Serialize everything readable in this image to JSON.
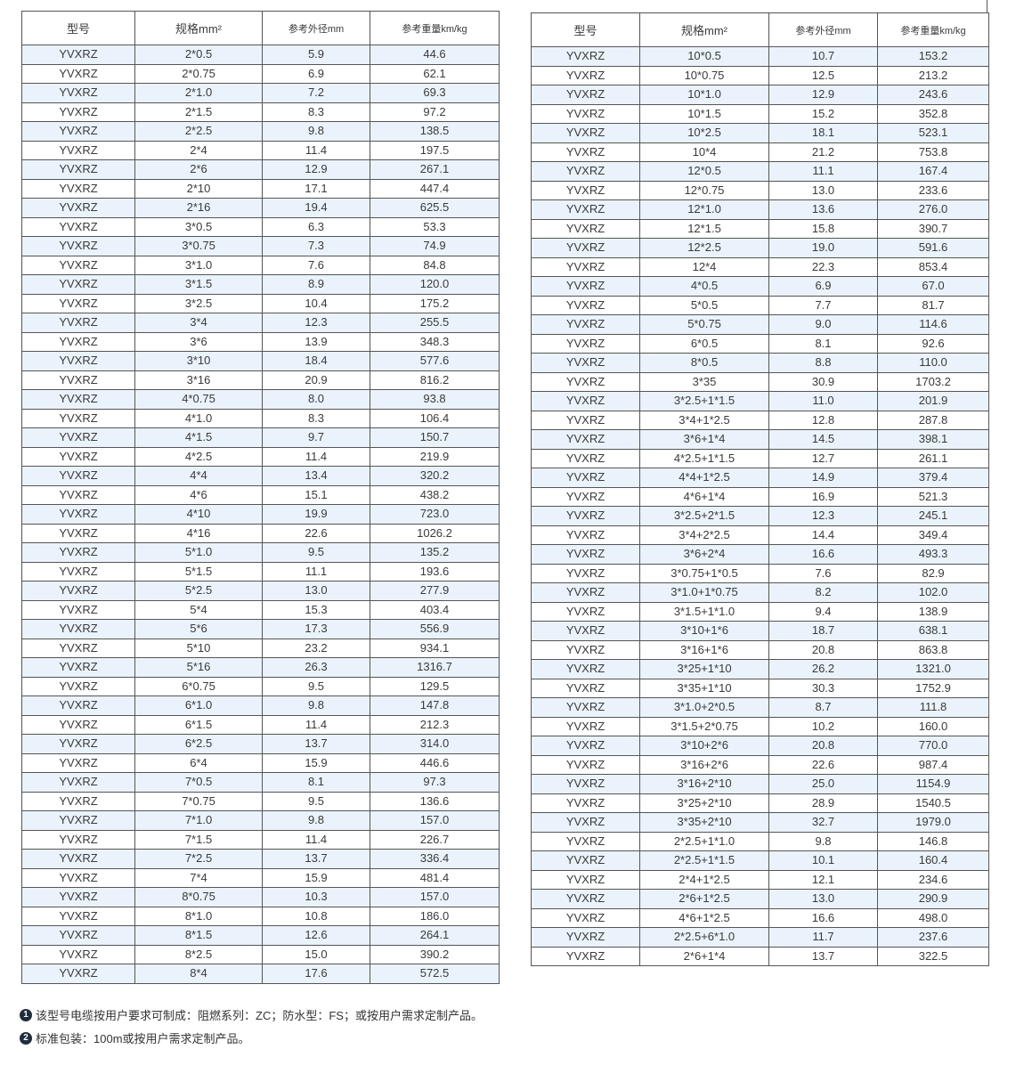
{
  "headers": [
    "型号",
    "规格mm²",
    "参考外径mm",
    "参考重量km/kg"
  ],
  "left_rows": [
    [
      "YVXRZ",
      "2*0.5",
      "5.9",
      "44.6"
    ],
    [
      "YVXRZ",
      "2*0.75",
      "6.9",
      "62.1"
    ],
    [
      "YVXRZ",
      "2*1.0",
      "7.2",
      "69.3"
    ],
    [
      "YVXRZ",
      "2*1.5",
      "8.3",
      "97.2"
    ],
    [
      "YVXRZ",
      "2*2.5",
      "9.8",
      "138.5"
    ],
    [
      "YVXRZ",
      "2*4",
      "11.4",
      "197.5"
    ],
    [
      "YVXRZ",
      "2*6",
      "12.9",
      "267.1"
    ],
    [
      "YVXRZ",
      "2*10",
      "17.1",
      "447.4"
    ],
    [
      "YVXRZ",
      "2*16",
      "19.4",
      "625.5"
    ],
    [
      "YVXRZ",
      "3*0.5",
      "6.3",
      "53.3"
    ],
    [
      "YVXRZ",
      "3*0.75",
      "7.3",
      "74.9"
    ],
    [
      "YVXRZ",
      "3*1.0",
      "7.6",
      "84.8"
    ],
    [
      "YVXRZ",
      "3*1.5",
      "8.9",
      "120.0"
    ],
    [
      "YVXRZ",
      "3*2.5",
      "10.4",
      "175.2"
    ],
    [
      "YVXRZ",
      "3*4",
      "12.3",
      "255.5"
    ],
    [
      "YVXRZ",
      "3*6",
      "13.9",
      "348.3"
    ],
    [
      "YVXRZ",
      "3*10",
      "18.4",
      "577.6"
    ],
    [
      "YVXRZ",
      "3*16",
      "20.9",
      "816.2"
    ],
    [
      "YVXRZ",
      "4*0.75",
      "8.0",
      "93.8"
    ],
    [
      "YVXRZ",
      "4*1.0",
      "8.3",
      "106.4"
    ],
    [
      "YVXRZ",
      "4*1.5",
      "9.7",
      "150.7"
    ],
    [
      "YVXRZ",
      "4*2.5",
      "11.4",
      "219.9"
    ],
    [
      "YVXRZ",
      "4*4",
      "13.4",
      "320.2"
    ],
    [
      "YVXRZ",
      "4*6",
      "15.1",
      "438.2"
    ],
    [
      "YVXRZ",
      "4*10",
      "19.9",
      "723.0"
    ],
    [
      "YVXRZ",
      "4*16",
      "22.6",
      "1026.2"
    ],
    [
      "YVXRZ",
      "5*1.0",
      "9.5",
      "135.2"
    ],
    [
      "YVXRZ",
      "5*1.5",
      "11.1",
      "193.6"
    ],
    [
      "YVXRZ",
      "5*2.5",
      "13.0",
      "277.9"
    ],
    [
      "YVXRZ",
      "5*4",
      "15.3",
      "403.4"
    ],
    [
      "YVXRZ",
      "5*6",
      "17.3",
      "556.9"
    ],
    [
      "YVXRZ",
      "5*10",
      "23.2",
      "934.1"
    ],
    [
      "YVXRZ",
      "5*16",
      "26.3",
      "1316.7"
    ],
    [
      "YVXRZ",
      "6*0.75",
      "9.5",
      "129.5"
    ],
    [
      "YVXRZ",
      "6*1.0",
      "9.8",
      "147.8"
    ],
    [
      "YVXRZ",
      "6*1.5",
      "11.4",
      "212.3"
    ],
    [
      "YVXRZ",
      "6*2.5",
      "13.7",
      "314.0"
    ],
    [
      "YVXRZ",
      "6*4",
      "15.9",
      "446.6"
    ],
    [
      "YVXRZ",
      "7*0.5",
      "8.1",
      "97.3"
    ],
    [
      "YVXRZ",
      "7*0.75",
      "9.5",
      "136.6"
    ],
    [
      "YVXRZ",
      "7*1.0",
      "9.8",
      "157.0"
    ],
    [
      "YVXRZ",
      "7*1.5",
      "11.4",
      "226.7"
    ],
    [
      "YVXRZ",
      "7*2.5",
      "13.7",
      "336.4"
    ],
    [
      "YVXRZ",
      "7*4",
      "15.9",
      "481.4"
    ],
    [
      "YVXRZ",
      "8*0.75",
      "10.3",
      "157.0"
    ],
    [
      "YVXRZ",
      "8*1.0",
      "10.8",
      "186.0"
    ],
    [
      "YVXRZ",
      "8*1.5",
      "12.6",
      "264.1"
    ],
    [
      "YVXRZ",
      "8*2.5",
      "15.0",
      "390.2"
    ],
    [
      "YVXRZ",
      "8*4",
      "17.6",
      "572.5"
    ]
  ],
  "right_rows": [
    [
      "YVXRZ",
      "10*0.5",
      "10.7",
      "153.2"
    ],
    [
      "YVXRZ",
      "10*0.75",
      "12.5",
      "213.2"
    ],
    [
      "YVXRZ",
      "10*1.0",
      "12.9",
      "243.6"
    ],
    [
      "YVXRZ",
      "10*1.5",
      "15.2",
      "352.8"
    ],
    [
      "YVXRZ",
      "10*2.5",
      "18.1",
      "523.1"
    ],
    [
      "YVXRZ",
      "10*4",
      "21.2",
      "753.8"
    ],
    [
      "YVXRZ",
      "12*0.5",
      "11.1",
      "167.4"
    ],
    [
      "YVXRZ",
      "12*0.75",
      "13.0",
      "233.6"
    ],
    [
      "YVXRZ",
      "12*1.0",
      "13.6",
      "276.0"
    ],
    [
      "YVXRZ",
      "12*1.5",
      "15.8",
      "390.7"
    ],
    [
      "YVXRZ",
      "12*2.5",
      "19.0",
      "591.6"
    ],
    [
      "YVXRZ",
      "12*4",
      "22.3",
      "853.4"
    ],
    [
      "YVXRZ",
      "4*0.5",
      "6.9",
      "67.0"
    ],
    [
      "YVXRZ",
      "5*0.5",
      "7.7",
      "81.7"
    ],
    [
      "YVXRZ",
      "5*0.75",
      "9.0",
      "114.6"
    ],
    [
      "YVXRZ",
      "6*0.5",
      "8.1",
      "92.6"
    ],
    [
      "YVXRZ",
      "8*0.5",
      "8.8",
      "110.0"
    ],
    [
      "YVXRZ",
      "3*35",
      "30.9",
      "1703.2"
    ],
    [
      "YVXRZ",
      "3*2.5+1*1.5",
      "11.0",
      "201.9"
    ],
    [
      "YVXRZ",
      "3*4+1*2.5",
      "12.8",
      "287.8"
    ],
    [
      "YVXRZ",
      "3*6+1*4",
      "14.5",
      "398.1"
    ],
    [
      "YVXRZ",
      "4*2.5+1*1.5",
      "12.7",
      "261.1"
    ],
    [
      "YVXRZ",
      "4*4+1*2.5",
      "14.9",
      "379.4"
    ],
    [
      "YVXRZ",
      "4*6+1*4",
      "16.9",
      "521.3"
    ],
    [
      "YVXRZ",
      "3*2.5+2*1.5",
      "12.3",
      "245.1"
    ],
    [
      "YVXRZ",
      "3*4+2*2.5",
      "14.4",
      "349.4"
    ],
    [
      "YVXRZ",
      "3*6+2*4",
      "16.6",
      "493.3"
    ],
    [
      "YVXRZ",
      "3*0.75+1*0.5",
      "7.6",
      "82.9"
    ],
    [
      "YVXRZ",
      "3*1.0+1*0.75",
      "8.2",
      "102.0"
    ],
    [
      "YVXRZ",
      "3*1.5+1*1.0",
      "9.4",
      "138.9"
    ],
    [
      "YVXRZ",
      "3*10+1*6",
      "18.7",
      "638.1"
    ],
    [
      "YVXRZ",
      "3*16+1*6",
      "20.8",
      "863.8"
    ],
    [
      "YVXRZ",
      "3*25+1*10",
      "26.2",
      "1321.0"
    ],
    [
      "YVXRZ",
      "3*35+1*10",
      "30.3",
      "1752.9"
    ],
    [
      "YVXRZ",
      "3*1.0+2*0.5",
      "8.7",
      "111.8"
    ],
    [
      "YVXRZ",
      "3*1.5+2*0.75",
      "10.2",
      "160.0"
    ],
    [
      "YVXRZ",
      "3*10+2*6",
      "20.8",
      "770.0"
    ],
    [
      "YVXRZ",
      "3*16+2*6",
      "22.6",
      "987.4"
    ],
    [
      "YVXRZ",
      "3*16+2*10",
      "25.0",
      "1154.9"
    ],
    [
      "YVXRZ",
      "3*25+2*10",
      "28.9",
      "1540.5"
    ],
    [
      "YVXRZ",
      "3*35+2*10",
      "32.7",
      "1979.0"
    ],
    [
      "YVXRZ",
      "2*2.5+1*1.0",
      "9.8",
      "146.8"
    ],
    [
      "YVXRZ",
      "2*2.5+1*1.5",
      "10.1",
      "160.4"
    ],
    [
      "YVXRZ",
      "2*4+1*2.5",
      "12.1",
      "234.6"
    ],
    [
      "YVXRZ",
      "2*6+1*2.5",
      "13.0",
      "290.9"
    ],
    [
      "YVXRZ",
      "4*6+1*2.5",
      "16.6",
      "498.0"
    ],
    [
      "YVXRZ",
      "2*2.5+6*1.0",
      "11.7",
      "237.6"
    ],
    [
      "YVXRZ",
      "2*6+1*4",
      "13.7",
      "322.5"
    ]
  ],
  "notes": [
    {
      "marker": "1",
      "text": "该型号电缆按用户要求可制成：阻燃系列：ZC；防水型：FS；或按用户需求定制产品。"
    },
    {
      "marker": "2",
      "text": "标准包装：100m或按用户需求定制产品。"
    }
  ],
  "colors": {
    "row_alt": "#eaf3fb",
    "border": "#555555"
  }
}
